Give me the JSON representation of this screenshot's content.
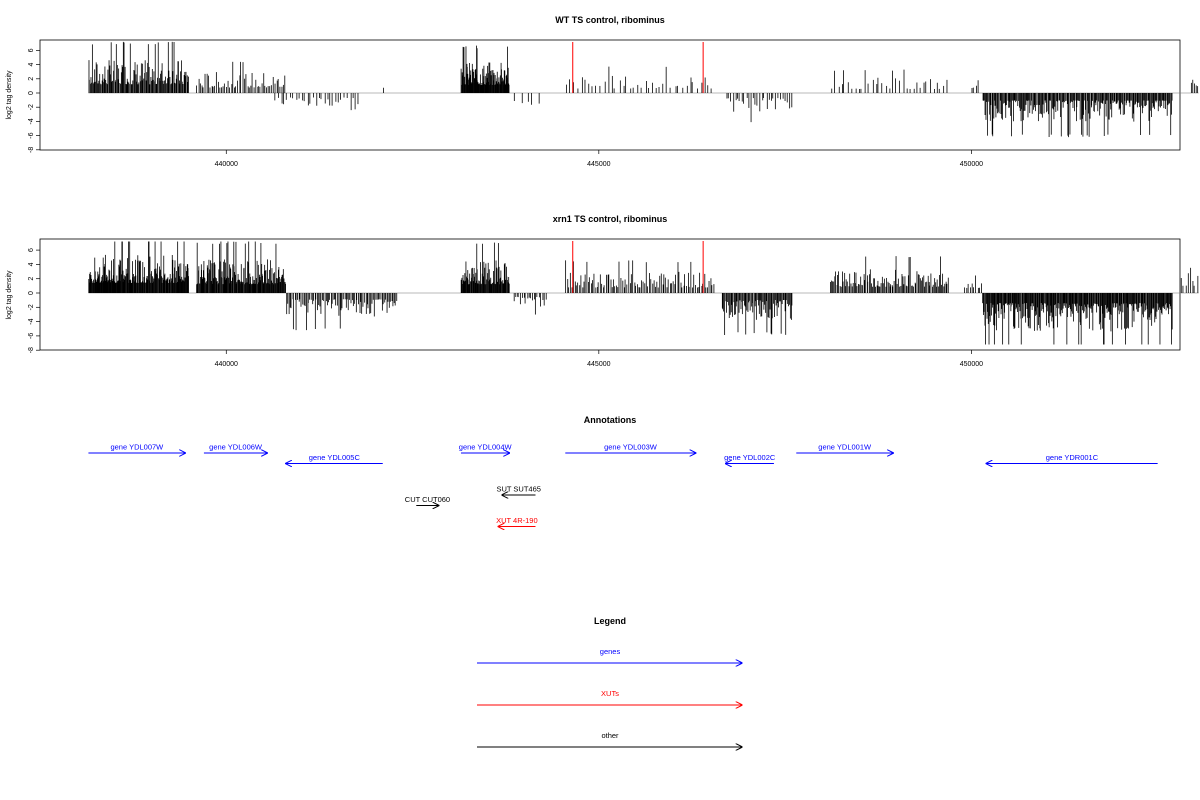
{
  "colors": {
    "gene": "#0000ff",
    "xut": "#ff0000",
    "other": "#000000",
    "highlight": "#ff0000"
  },
  "chart_data": [
    {
      "type": "bar",
      "title": "WT TS control, ribominus",
      "ylabel": "log2 tag density",
      "xlim": [
        437500,
        452800
      ],
      "ylim": [
        -8,
        7.5
      ],
      "xticks": [
        "440000",
        "445000",
        "450000"
      ],
      "xtick_values": [
        440000,
        445000,
        450000
      ],
      "yticks": [
        "-8",
        "-6",
        "-4",
        "-2",
        "0",
        "2",
        "4",
        "6"
      ],
      "ytick_values": [
        -8,
        -6,
        -4,
        -2,
        0,
        2,
        4,
        6
      ],
      "highlight_lines_x": [
        444650,
        446400
      ],
      "segments": [
        {
          "start": 438150,
          "end": 439500,
          "sign": 1,
          "amp": 3.5,
          "density": 130
        },
        {
          "start": 439600,
          "end": 440800,
          "sign": 1,
          "amp": 2.2,
          "density": 55
        },
        {
          "start": 440650,
          "end": 441800,
          "sign": -1,
          "amp": 1.8,
          "density": 30
        },
        {
          "start": 442100,
          "end": 442120,
          "sign": 1,
          "amp": 1.0,
          "density": 1
        },
        {
          "start": 443150,
          "end": 443800,
          "sign": 1,
          "amp": 3.2,
          "density": 110
        },
        {
          "start": 443850,
          "end": 444250,
          "sign": -1,
          "amp": 1.5,
          "density": 5
        },
        {
          "start": 444550,
          "end": 446550,
          "sign": 1,
          "amp": 1.8,
          "density": 40
        },
        {
          "start": 446700,
          "end": 447600,
          "sign": -1,
          "amp": 2.0,
          "density": 30
        },
        {
          "start": 448100,
          "end": 449700,
          "sign": 1,
          "amp": 1.6,
          "density": 35
        },
        {
          "start": 450000,
          "end": 450100,
          "sign": 1,
          "amp": 1.5,
          "density": 4
        },
        {
          "start": 450150,
          "end": 452700,
          "sign": -1,
          "amp": 3.0,
          "density": 230
        },
        {
          "start": 452950,
          "end": 453050,
          "sign": 1,
          "amp": 2.5,
          "density": 5
        }
      ]
    },
    {
      "type": "bar",
      "title": "xrn1 TS control, ribominus",
      "ylabel": "log2 tag density",
      "xlim": [
        437500,
        452800
      ],
      "ylim": [
        -8,
        7.5
      ],
      "xticks": [
        "440000",
        "445000",
        "450000"
      ],
      "xtick_values": [
        440000,
        445000,
        450000
      ],
      "yticks": [
        "-8",
        "-6",
        "-4",
        "-2",
        "0",
        "2",
        "4",
        "6"
      ],
      "ytick_values": [
        -8,
        -6,
        -4,
        -2,
        0,
        2,
        4,
        6
      ],
      "highlight_lines_x": [
        444650,
        446400
      ],
      "segments": [
        {
          "start": 438150,
          "end": 439500,
          "sign": 1,
          "amp": 4.0,
          "density": 200
        },
        {
          "start": 439600,
          "end": 440800,
          "sign": 1,
          "amp": 3.5,
          "density": 160
        },
        {
          "start": 440800,
          "end": 442300,
          "sign": -1,
          "amp": 2.5,
          "density": 90
        },
        {
          "start": 443150,
          "end": 443800,
          "sign": 1,
          "amp": 3.5,
          "density": 90
        },
        {
          "start": 443850,
          "end": 444300,
          "sign": -1,
          "amp": 1.5,
          "density": 20
        },
        {
          "start": 444550,
          "end": 446550,
          "sign": 1,
          "amp": 2.2,
          "density": 100
        },
        {
          "start": 446650,
          "end": 447600,
          "sign": -1,
          "amp": 2.8,
          "density": 80
        },
        {
          "start": 448100,
          "end": 449700,
          "sign": 1,
          "amp": 2.5,
          "density": 110
        },
        {
          "start": 449900,
          "end": 450150,
          "sign": 1,
          "amp": 2.0,
          "density": 10
        },
        {
          "start": 450150,
          "end": 452700,
          "sign": -1,
          "amp": 4.0,
          "density": 280
        },
        {
          "start": 452800,
          "end": 453050,
          "sign": 1,
          "amp": 2.8,
          "density": 8
        }
      ]
    }
  ],
  "annotations": {
    "title": "Annotations",
    "items": [
      {
        "label": "gene YDL007W",
        "x_start": 438150,
        "x_end": 439450,
        "strand": "+",
        "kind": "gene",
        "row": 0
      },
      {
        "label": "gene YDL006W",
        "x_start": 439700,
        "x_end": 440550,
        "strand": "+",
        "kind": "gene",
        "row": 0
      },
      {
        "label": "gene YDL005C",
        "x_start": 440800,
        "x_end": 442100,
        "strand": "-",
        "kind": "gene",
        "row": 1
      },
      {
        "label": "gene YDL004W",
        "x_start": 443150,
        "x_end": 443800,
        "strand": "+",
        "kind": "gene",
        "row": 0
      },
      {
        "label": "gene YDL003W",
        "x_start": 444550,
        "x_end": 446300,
        "strand": "+",
        "kind": "gene",
        "row": 0
      },
      {
        "label": "gene YDL002C",
        "x_start": 446700,
        "x_end": 447350,
        "strand": "-",
        "kind": "gene",
        "row": 1
      },
      {
        "label": "gene YDL001W",
        "x_start": 447650,
        "x_end": 448950,
        "strand": "+",
        "kind": "gene",
        "row": 0
      },
      {
        "label": "gene YDR001C",
        "x_start": 450200,
        "x_end": 452500,
        "strand": "-",
        "kind": "gene",
        "row": 1
      },
      {
        "label": "SUT SUT465",
        "x_start": 443700,
        "x_end": 444150,
        "strand": "-",
        "kind": "other",
        "row": 4
      },
      {
        "label": "CUT CUT060",
        "x_start": 442550,
        "x_end": 442850,
        "strand": "+",
        "kind": "other",
        "row": 5
      },
      {
        "label": "XUT 4R-190",
        "x_start": 443650,
        "x_end": 444150,
        "strand": "-",
        "kind": "xut",
        "row": 7
      }
    ]
  },
  "legend": {
    "title": "Legend",
    "items": [
      {
        "label": "genes",
        "kind": "gene"
      },
      {
        "label": "XUTs",
        "kind": "xut"
      },
      {
        "label": "other",
        "kind": "other"
      }
    ]
  }
}
